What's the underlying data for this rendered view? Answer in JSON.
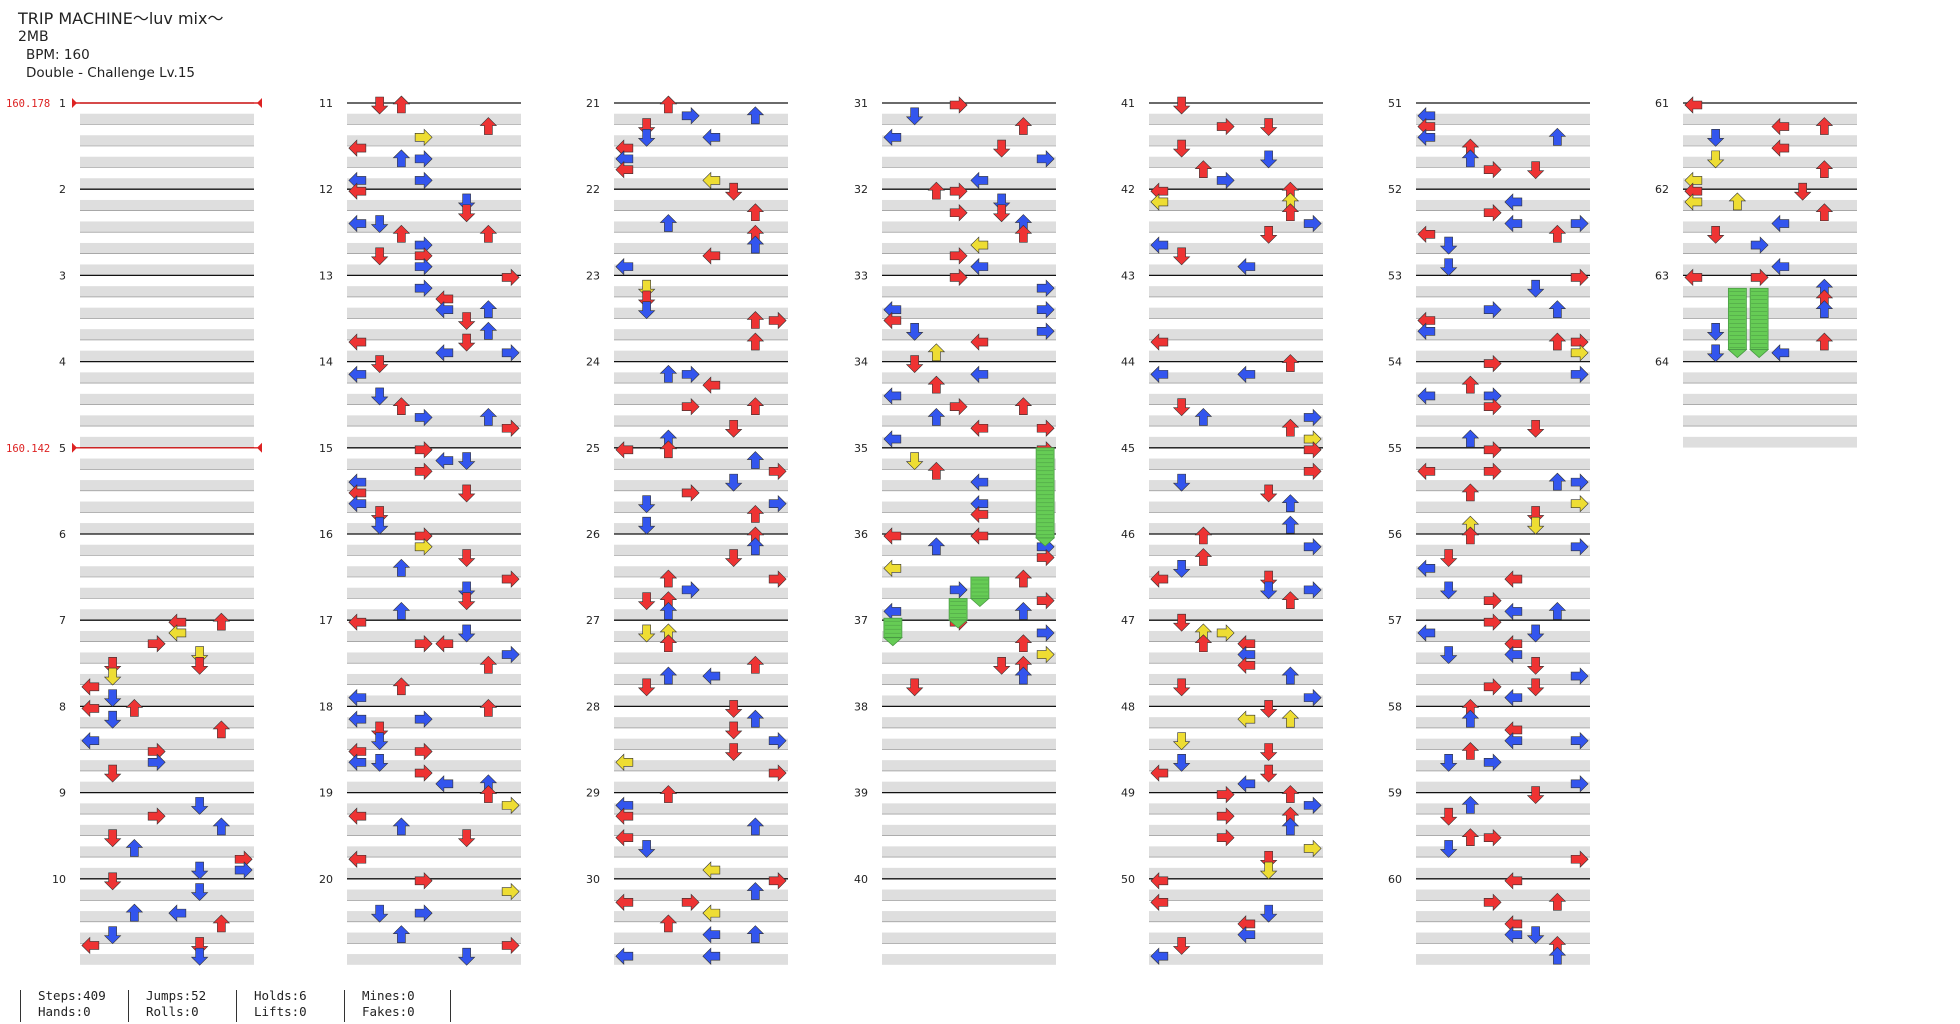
{
  "song": {
    "title": "TRIP MACHINE～luv mix～",
    "artist": "2MB",
    "bpm": "BPM: 160",
    "difficulty": "Double - Challenge Lv.15"
  },
  "colors": {
    "quarter": "#ee3333",
    "eighth": "#3355ee",
    "sixteenth": "#eedd33",
    "hold": "#66cc55",
    "bpm_change": "#dd2222",
    "row_fill": "#dedede",
    "beat_line": "#111111"
  },
  "bpm_changes": [
    {
      "measure": 1,
      "label": "160.178"
    },
    {
      "measure": 5,
      "label": "160.142"
    }
  ],
  "columns": [
    {
      "measures": [
        1,
        2,
        3,
        4,
        5,
        6,
        7,
        8,
        9,
        10
      ]
    },
    {
      "measures": [
        11,
        12,
        13,
        14,
        15,
        16,
        17,
        18,
        19,
        20
      ]
    },
    {
      "measures": [
        21,
        22,
        23,
        24,
        25,
        26,
        27,
        28,
        29,
        30
      ]
    },
    {
      "measures": [
        31,
        32,
        33,
        34,
        35,
        36,
        37,
        38,
        39,
        40
      ]
    },
    {
      "measures": [
        41,
        42,
        43,
        44,
        45,
        46,
        47,
        48,
        49,
        50
      ]
    },
    {
      "measures": [
        51,
        52,
        53,
        54,
        55,
        56,
        57,
        58,
        59,
        60
      ]
    },
    {
      "measures": [
        61,
        62,
        63,
        64
      ]
    }
  ],
  "stats": [
    {
      "top": "Steps:409",
      "bottom": "Hands:0"
    },
    {
      "top": "Jumps:52",
      "bottom": "Rolls:0"
    },
    {
      "top": "Holds:6",
      "bottom": "Lifts:0"
    },
    {
      "top": "Mines:0",
      "bottom": "Fakes:0"
    }
  ]
}
